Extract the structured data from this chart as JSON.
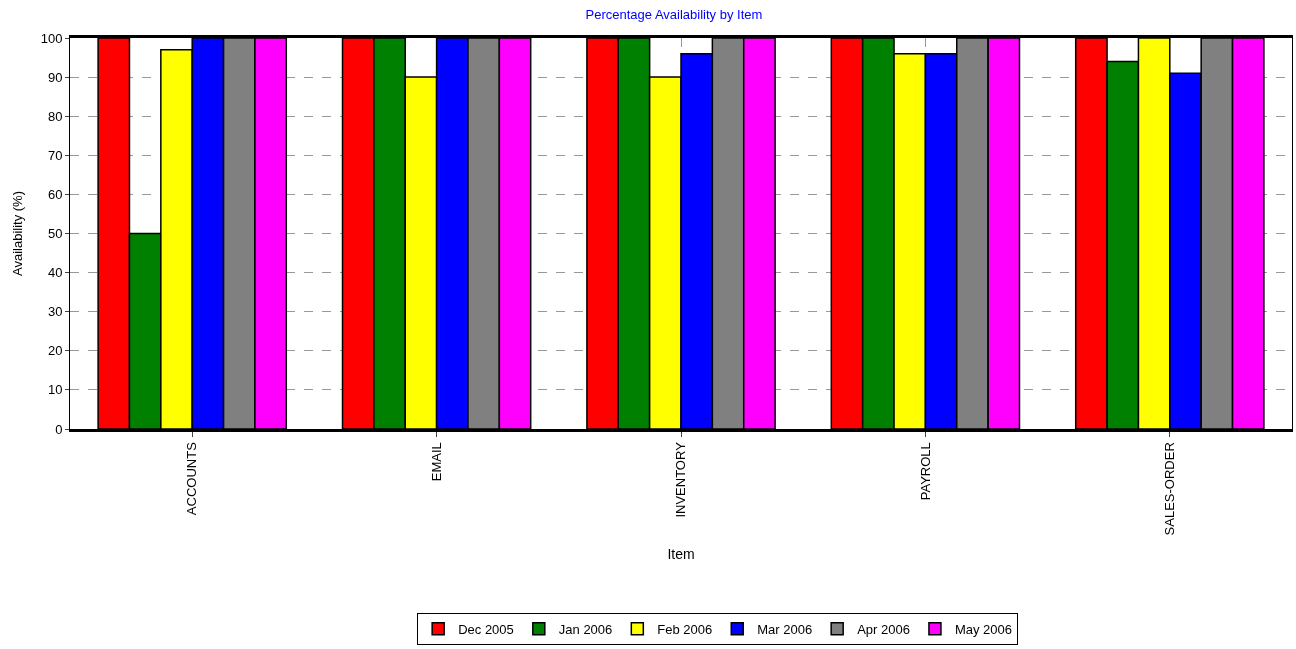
{
  "chart_data": {
    "type": "bar",
    "title": "Percentage Availability by Item",
    "xlabel": "Item",
    "ylabel": "Availability (%)",
    "categories": [
      "ACCOUNTS",
      "EMAIL",
      "INVENTORY",
      "PAYROLL",
      "SALES-ORDER"
    ],
    "series": [
      {
        "name": "Dec 2005",
        "color": "#ff0000",
        "values": [
          100,
          100,
          100,
          100,
          100
        ]
      },
      {
        "name": "Jan 2006",
        "color": "#008000",
        "values": [
          50,
          100,
          100,
          100,
          94
        ]
      },
      {
        "name": "Feb 2006",
        "color": "#ffff00",
        "values": [
          97,
          90,
          90,
          96,
          100
        ]
      },
      {
        "name": "Mar 2006",
        "color": "#0000ff",
        "values": [
          100,
          100,
          96,
          96,
          91
        ]
      },
      {
        "name": "Apr 2006",
        "color": "#808080",
        "values": [
          100,
          100,
          100,
          100,
          100
        ]
      },
      {
        "name": "May 2006",
        "color": "#ff00ff",
        "values": [
          100,
          100,
          100,
          100,
          100
        ]
      }
    ],
    "ylim": [
      0,
      100
    ],
    "yticks": [
      0,
      10,
      20,
      30,
      40,
      50,
      60,
      70,
      80,
      90,
      100
    ],
    "grid": true,
    "legend": "bottom"
  }
}
